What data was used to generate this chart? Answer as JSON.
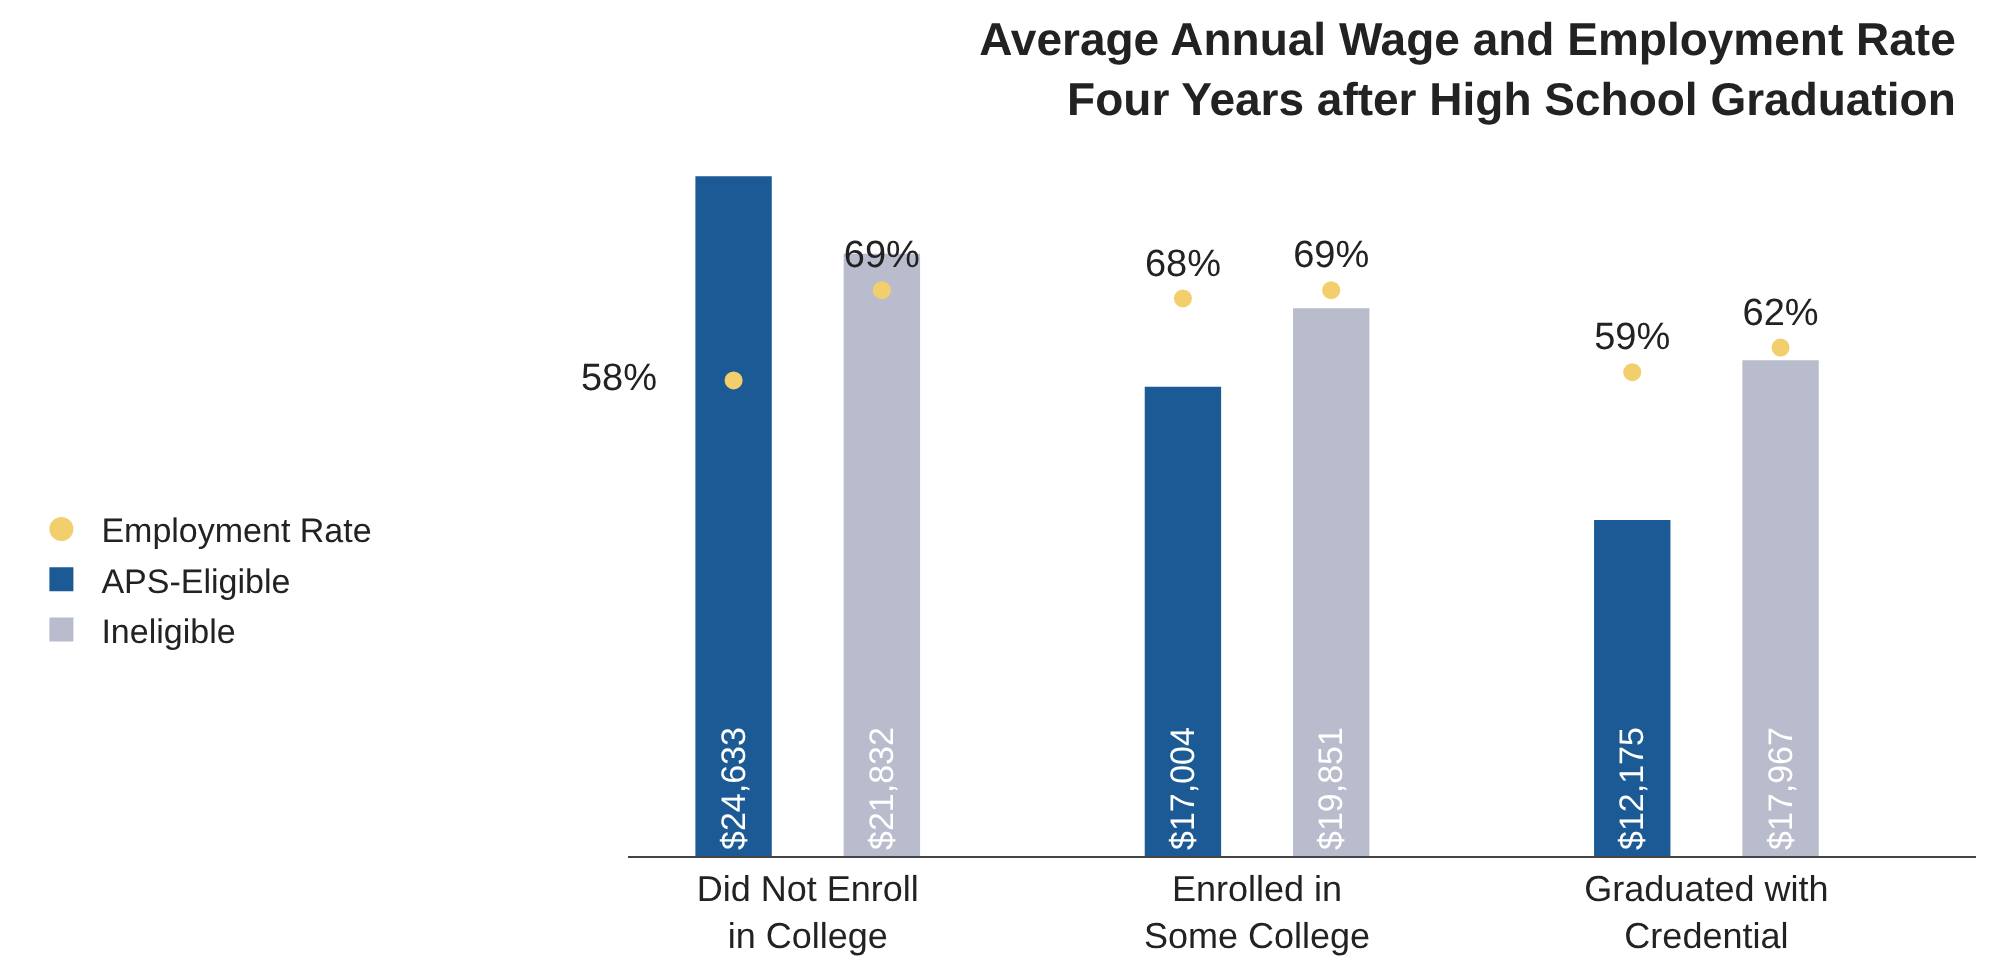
{
  "chart_data": {
    "type": "bar",
    "title": "Average Annual Wage and Employment Rate\nFour Years after High School Graduation",
    "categories": [
      "Did Not Enroll in College",
      "Enrolled in Some College",
      "Graduated with Credential"
    ],
    "series": [
      {
        "name": "APS-Eligible",
        "color": "#1b5a94",
        "values": [
          24633,
          17004,
          12175
        ],
        "value_labels": [
          "$24,633",
          "$17,004",
          "$12,175"
        ]
      },
      {
        "name": "Ineligible",
        "color": "#b9bccc",
        "values": [
          21832,
          19851,
          17967
        ],
        "value_labels": [
          "$21,832",
          "$19,851",
          "$17,967"
        ]
      },
      {
        "name": "Employment Rate",
        "type": "scatter",
        "axis": "y2",
        "color": "#f2cf6c",
        "values": [
          58,
          68,
          59
        ],
        "value_labels": [
          "58%",
          "68%",
          "59%"
        ]
      },
      {
        "type": "scatter",
        "axis": "y2",
        "color": "#f2cf6c",
        "values": [
          69,
          69,
          62
        ],
        "value_labels": [
          "69%",
          "69%",
          "62%"
        ]
      }
    ],
    "tick_labels": "x",
    "legend": "left",
    "grid": false,
    "marker": "circle"
  }
}
